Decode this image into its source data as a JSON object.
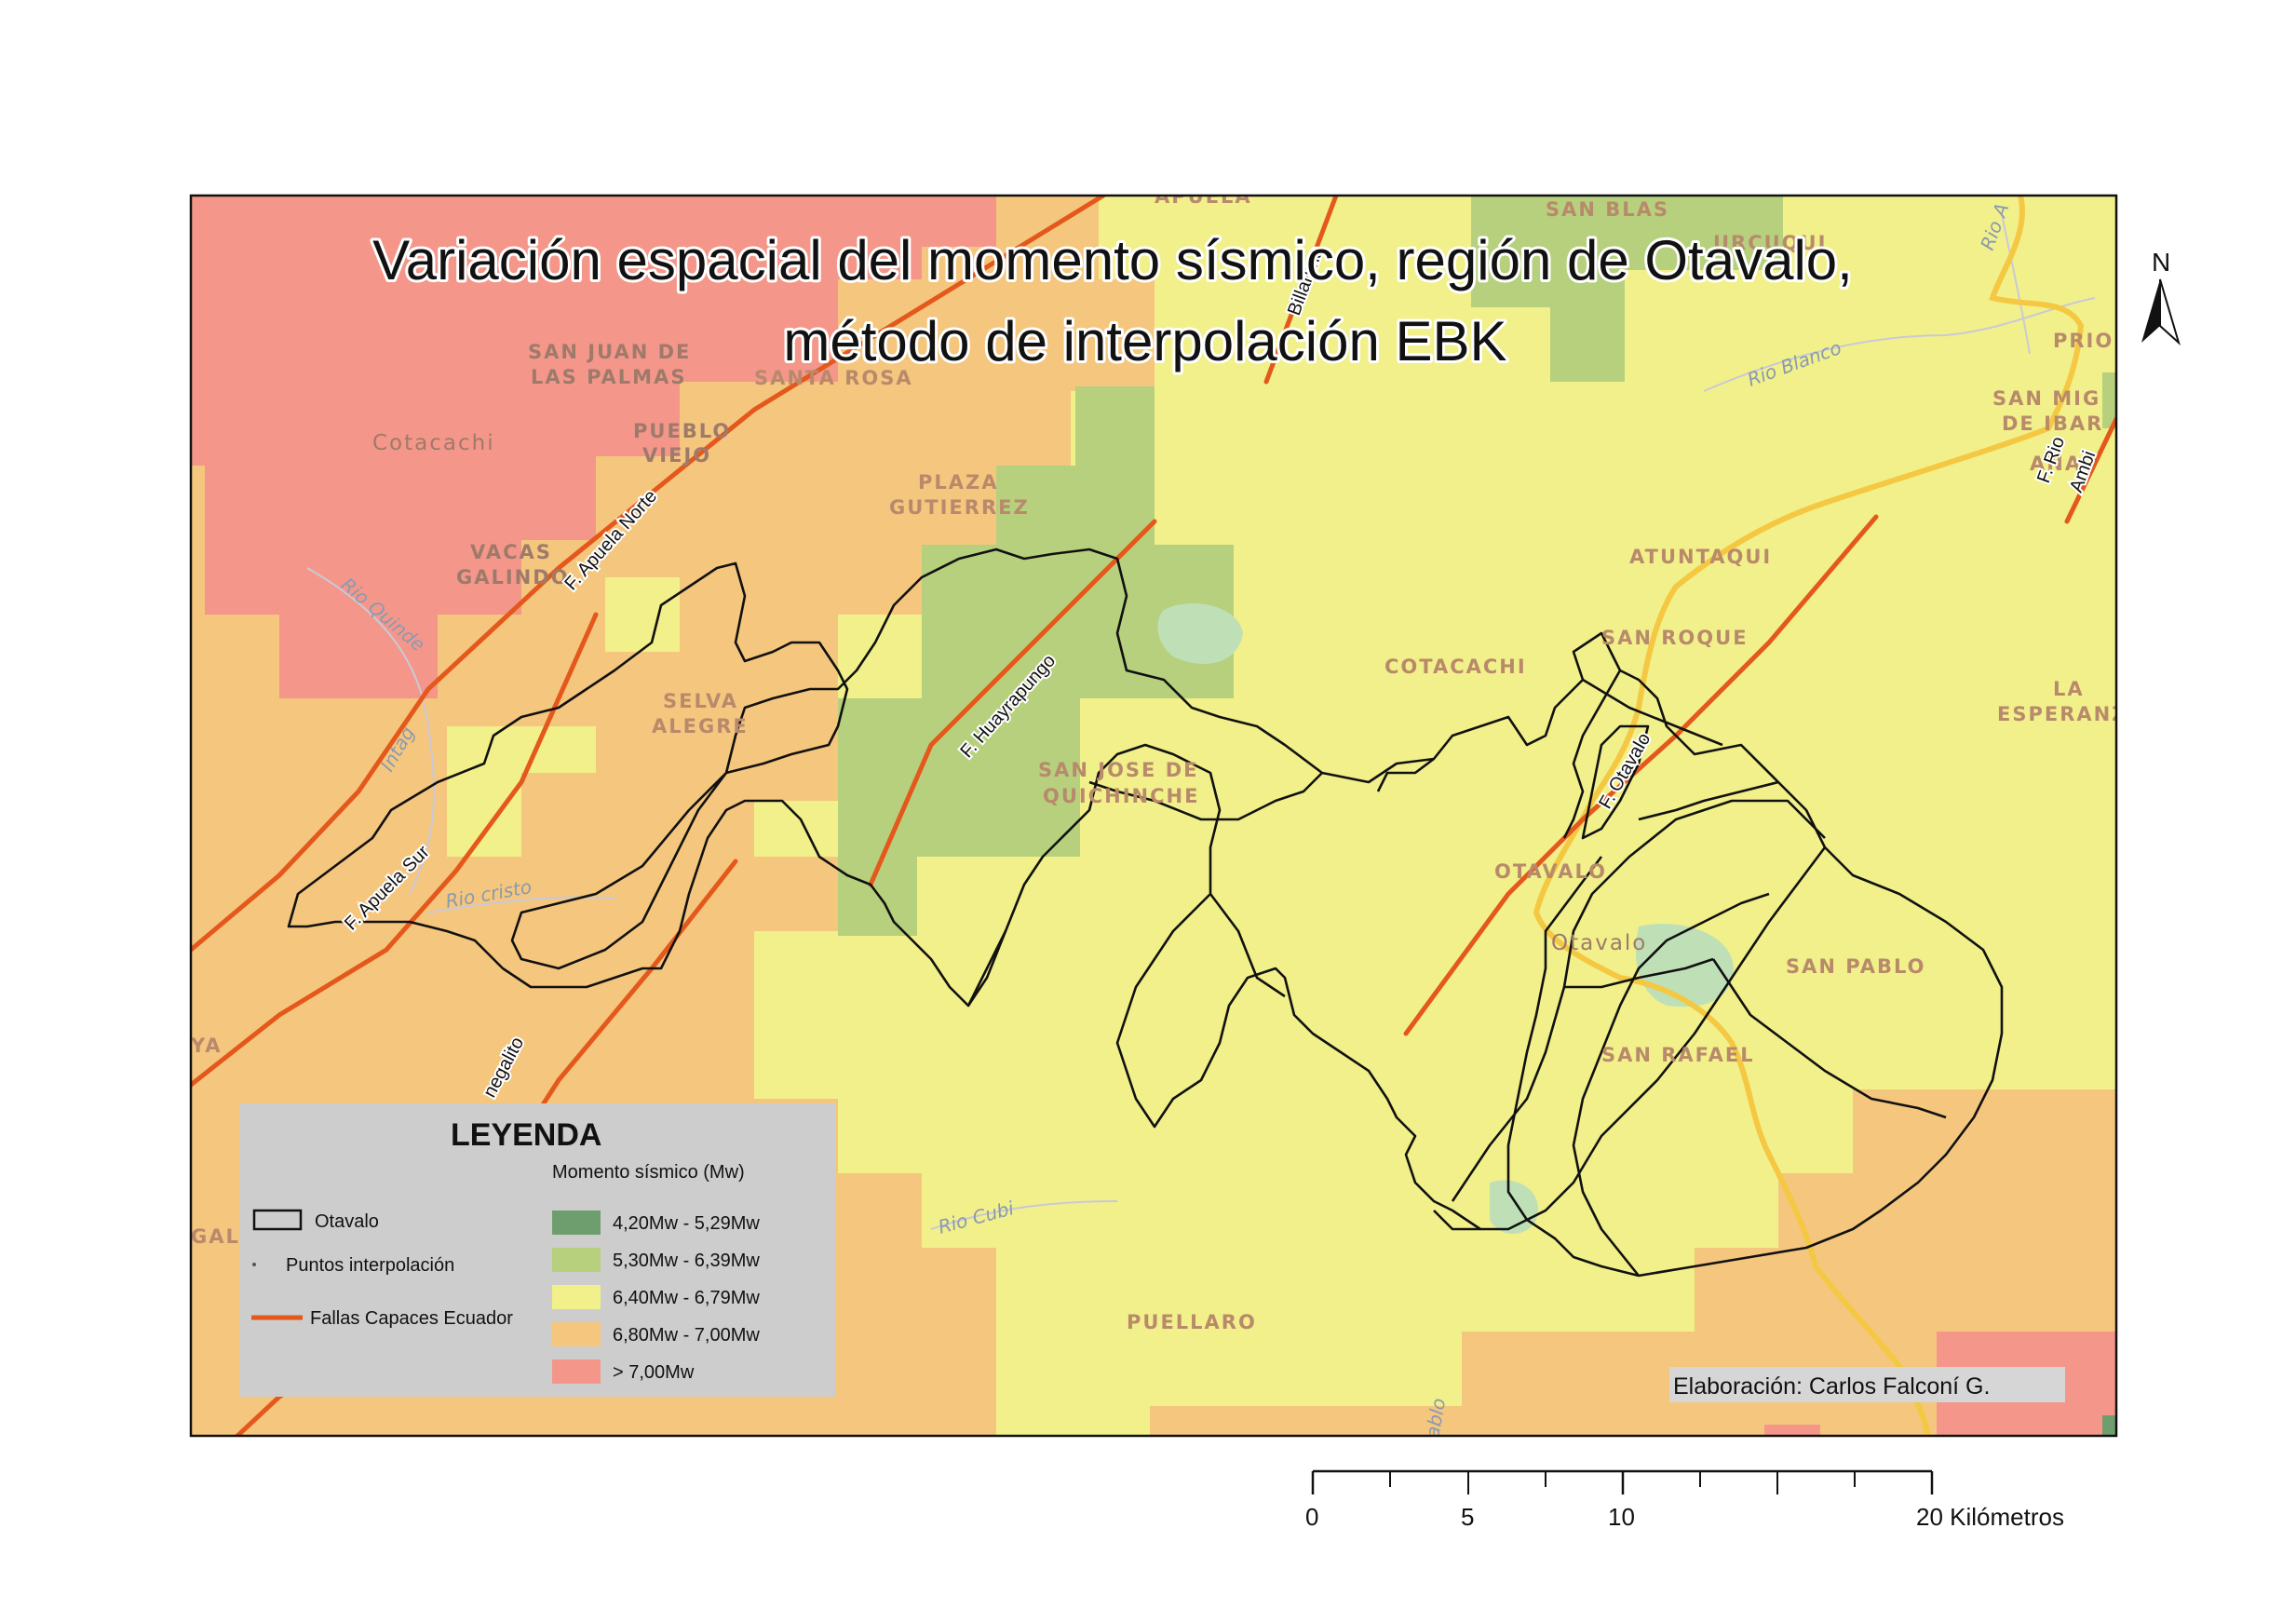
{
  "title": {
    "line1": "Variación espacial del momento sísmico, región de Otavalo,",
    "line2": "método de interpolación EBK"
  },
  "colors": {
    "very_high": "#f4978a",
    "high": "#f5c67e",
    "medium": "#f2f08a",
    "low": "#b6d07d",
    "very_low": "#6f9e6e",
    "fault": "#e4581c",
    "road": "#f4c842",
    "boundary": "#111111"
  },
  "places": {
    "apuela": "APUELA",
    "san_blas": "SAN BLAS",
    "urcuqui": "URCUQUI",
    "prioratro": "PRIORAT",
    "san_miguel_1": "SAN MIG",
    "san_miguel_2": "DE IBAR",
    "ana": "ANA",
    "san_juan_1": "SAN JUAN DE",
    "san_juan_2": "LAS PALMAS",
    "santa_rosa": "SANTA ROSA",
    "cotacachi_town": "Cotacachi",
    "pueblo_1": "PUEBLO",
    "pueblo_2": "VIEJO",
    "plaza_1": "PLAZA",
    "plaza_2": "GUTIERREZ",
    "vacas_1": "VACAS",
    "vacas_2": "GALINDO",
    "atuntaqui": "ATUNTAQUI",
    "san_roque": "SAN ROQUE",
    "cotacachi": "COTACACHI",
    "la_esperanza_1": "LA",
    "la_esperanza_2": "ESPERANZ",
    "selva_1": "SELVA",
    "selva_2": "ALEGRE",
    "san_jose_1": "SAN JOSE DE",
    "san_jose_2": "QUICHINCHE",
    "otavalo": "OTAVALO",
    "otavalo_town": "Otavalo",
    "san_pablo": "SAN PABLO",
    "san_rafael": "SAN RAFAEL",
    "puellaro": "PUELLARO",
    "ya": "YA",
    "gal": "GAL"
  },
  "rivers": {
    "rio_blanco": "Rio Blanco",
    "rio_quinde": "Rio Quinde",
    "rio_cristo": "Rio cristo",
    "rio_cubi": "Rio Cubi",
    "intag": "Intag",
    "rio_a": "Rio A",
    "pablo": "ablo"
  },
  "faults": {
    "apuela_norte": "F. Apuela Norte",
    "apuela_sur": "F. Apuela Sur",
    "huayrapungo": "F. Huayrapungo",
    "otavalo": "F. Otavalo",
    "billarima": "Billarima",
    "rio_ambi_1": "F. Rio",
    "rio_ambi_2": "Ambi",
    "negalito": "negalito"
  },
  "legend": {
    "title": "LEYENDA",
    "subtitle": "Momento sísmico (Mw)",
    "boundary_label": "Otavalo",
    "points_label": "Puntos interpolación",
    "faults_label": "Fallas Capaces Ecuador",
    "classes": [
      {
        "label": "4,20Mw - 5,29Mw",
        "color": "#6f9e6e"
      },
      {
        "label": "5,30Mw - 6,39Mw",
        "color": "#b6d07d"
      },
      {
        "label": "6,40Mw - 6,79Mw",
        "color": "#f2f08a"
      },
      {
        "label": "6,80Mw - 7,00Mw",
        "color": "#f5c67e"
      },
      {
        "label": "> 7,00Mw",
        "color": "#f4978a"
      }
    ]
  },
  "credit": "Elaboración: Carlos Falconí G.",
  "north": "N",
  "scale": {
    "labels": [
      "0",
      "5",
      "10",
      "20 Kilómetros"
    ]
  }
}
